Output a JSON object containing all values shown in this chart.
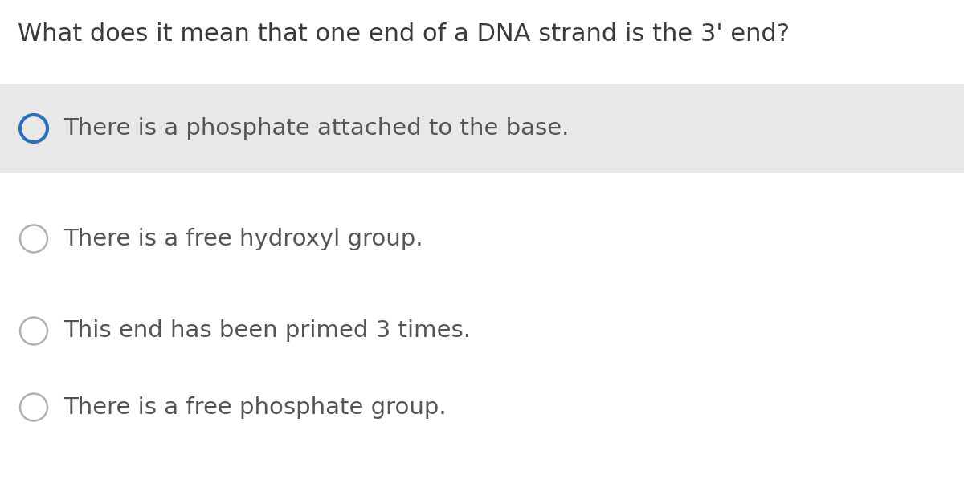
{
  "question": "What does it mean that one end of a DNA strand is the 3' end?",
  "options": [
    "There is a phosphate attached to the base.",
    "There is a free hydroxyl group.",
    "This end has been primed 3 times.",
    "There is a free phosphate group."
  ],
  "selected_index": 0,
  "background_color": "#ffffff",
  "highlight_color": "#e8e8e8",
  "question_color": "#3a3a3a",
  "option_color": "#555555",
  "circle_default_color": "#b0b0b0",
  "circle_selected_color": "#2e6fbc",
  "question_fontsize": 22,
  "option_fontsize": 21,
  "fig_width": 12.0,
  "fig_height": 5.97,
  "dpi": 100
}
